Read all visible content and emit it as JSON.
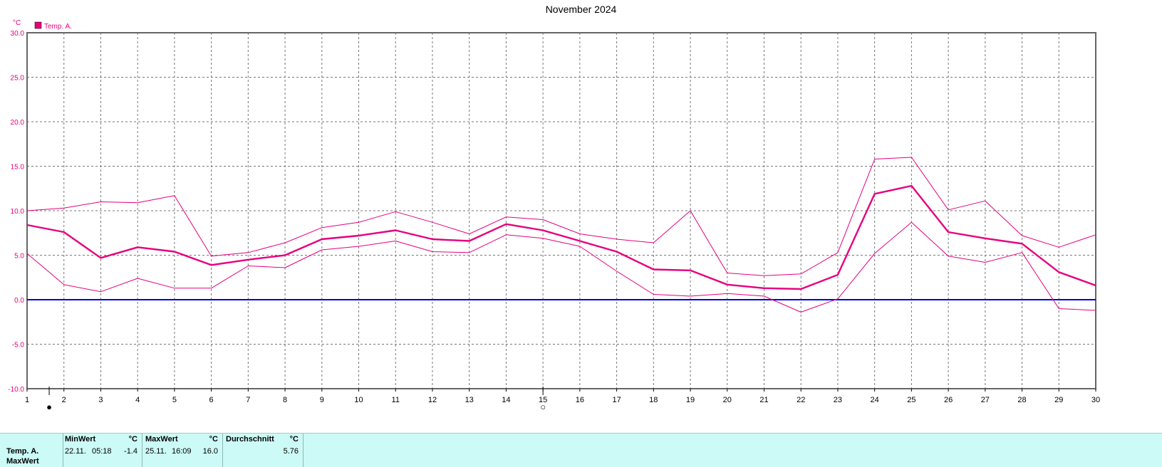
{
  "title": "November 2024",
  "legend": {
    "swatch_color": "#e6007e",
    "label": "Temp. A.",
    "unit": "°C"
  },
  "chart_data": {
    "type": "line",
    "title": "November 2024",
    "ylabel": "°C",
    "xlabel": "",
    "x": [
      1,
      2,
      3,
      4,
      5,
      6,
      7,
      8,
      9,
      10,
      11,
      12,
      13,
      14,
      15,
      16,
      17,
      18,
      19,
      20,
      21,
      22,
      23,
      24,
      25,
      26,
      27,
      28,
      29,
      30
    ],
    "ylim": [
      -10,
      30
    ],
    "xlim": [
      1,
      30
    ],
    "yticks": [
      "30.0",
      "25.0",
      "20.0",
      "15.0",
      "10.0",
      "5.0",
      "0.0",
      "-5.0",
      "-10.0"
    ],
    "xticks": [
      "1",
      "2",
      "3",
      "4",
      "5",
      "6",
      "7",
      "8",
      "9",
      "10",
      "11",
      "12",
      "13",
      "14",
      "15",
      "16",
      "17",
      "18",
      "19",
      "20",
      "21",
      "22",
      "23",
      "24",
      "25",
      "26",
      "27",
      "28",
      "29",
      "30"
    ],
    "grid": true,
    "legend_position": "top-left",
    "zero_line_color": "#0000e0",
    "series": [
      {
        "name": "Temp. A.",
        "role": "max",
        "color": "#e6007e",
        "values": [
          10.0,
          10.3,
          11.0,
          10.9,
          11.7,
          4.9,
          5.3,
          6.4,
          8.1,
          8.7,
          9.9,
          8.7,
          7.4,
          9.3,
          9.0,
          7.4,
          6.8,
          6.4,
          10.0,
          3.0,
          2.7,
          2.9,
          5.3,
          15.8,
          16.0,
          10.1,
          11.1,
          7.2,
          5.9,
          7.3
        ]
      },
      {
        "name": "Temp. A.",
        "role": "mean",
        "color": "#e6007e",
        "values": [
          8.4,
          7.6,
          4.7,
          5.9,
          5.4,
          3.9,
          4.5,
          5.0,
          6.8,
          7.2,
          7.8,
          6.8,
          6.6,
          8.5,
          7.8,
          6.6,
          5.4,
          3.4,
          3.3,
          1.7,
          1.3,
          1.2,
          2.8,
          11.9,
          12.8,
          7.6,
          6.9,
          6.3,
          3.1,
          1.6
        ]
      },
      {
        "name": "Temp. A.",
        "role": "min",
        "color": "#e6007e",
        "values": [
          5.2,
          1.7,
          0.9,
          2.4,
          1.3,
          1.3,
          3.8,
          3.6,
          5.6,
          6.0,
          6.6,
          5.4,
          5.3,
          7.3,
          6.9,
          6.0,
          3.2,
          0.6,
          0.4,
          0.7,
          0.4,
          -1.4,
          0.1,
          5.2,
          8.7,
          4.9,
          4.2,
          5.3,
          -1.0,
          -1.2
        ]
      }
    ],
    "moon_phases": [
      {
        "day": 1.6,
        "symbol": "●",
        "name": "new-moon"
      },
      {
        "day": 15.0,
        "symbol": "○",
        "name": "full-moon"
      }
    ]
  },
  "stats": {
    "row_label": "Temp. A.",
    "row_label_2": "MaxWert",
    "min": {
      "header": "MinWert",
      "unit": "°C",
      "date": "22.11.",
      "time": "05:18",
      "value": "-1.4"
    },
    "max": {
      "header": "MaxWert",
      "unit": "°C",
      "date": "25.11.",
      "time": "16:09",
      "value": "16.0"
    },
    "avg": {
      "header": "Durchschnitt",
      "unit": "°C",
      "value": "5.76"
    }
  }
}
